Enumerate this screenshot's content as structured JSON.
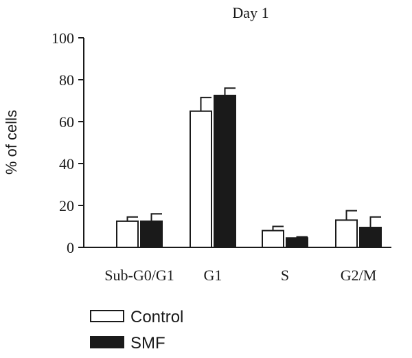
{
  "chart_data": {
    "type": "bar",
    "title": "Day 1",
    "xlabel": "",
    "ylabel": "% of cells",
    "ylim": [
      0,
      100
    ],
    "yticks": [
      0,
      20,
      40,
      60,
      80,
      100
    ],
    "categories": [
      "Sub-G0/G1",
      "G1",
      "S",
      "G2/M"
    ],
    "series": [
      {
        "name": "Control",
        "color": "#ffffff",
        "edge": "#1a1a1a",
        "values": [
          12.5,
          65,
          8,
          13
        ],
        "errors": [
          2,
          6.5,
          2,
          4.5
        ]
      },
      {
        "name": "SMF",
        "color": "#1a1a1a",
        "edge": "#1a1a1a",
        "values": [
          12.5,
          72.5,
          4.5,
          9.5
        ],
        "errors": [
          3.5,
          3.5,
          0.5,
          5
        ]
      }
    ],
    "grid": false,
    "legend": "bottom-left"
  }
}
